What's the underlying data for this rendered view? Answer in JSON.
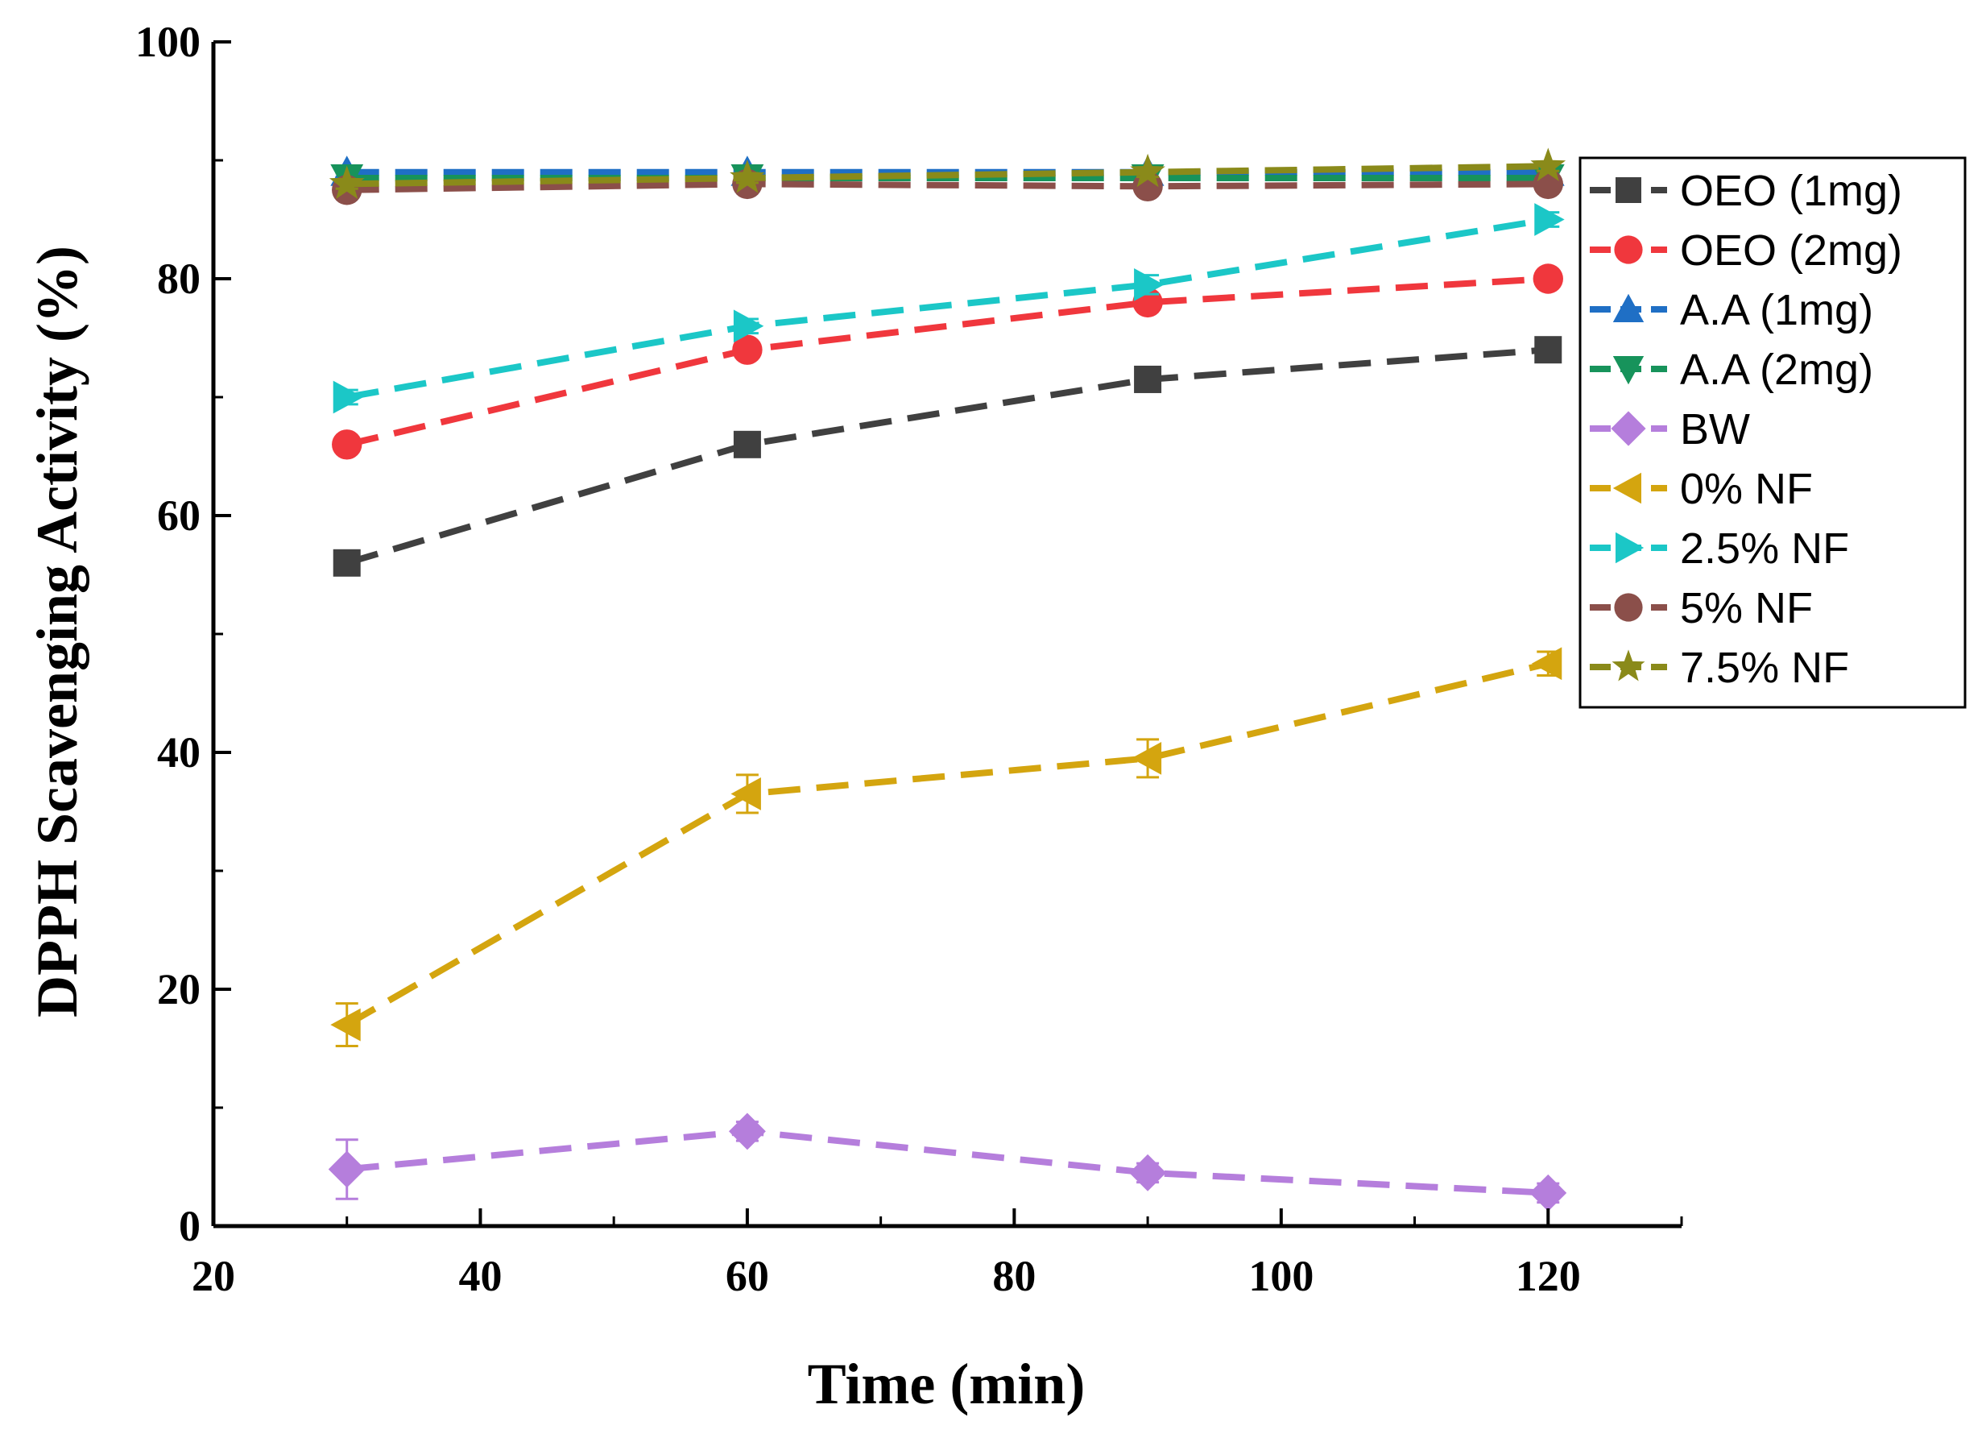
{
  "chart_data": {
    "type": "line",
    "xlabel": "Time (min)",
    "ylabel": "DPPH Scavenging Activity (%)",
    "xlim": [
      20,
      130
    ],
    "ylim": [
      0,
      100
    ],
    "xticks": [
      20,
      40,
      60,
      80,
      100,
      120
    ],
    "yticks": [
      0,
      20,
      40,
      60,
      80,
      100
    ],
    "grid": false,
    "legend_position": "top-right",
    "x": [
      30,
      60,
      90,
      120
    ],
    "series": [
      {
        "name": "OEO (1mg)",
        "values": [
          56,
          66,
          71.5,
          74
        ],
        "errors": [
          0.8,
          0.6,
          0.8,
          0.6
        ],
        "color": "#404040",
        "marker": "square"
      },
      {
        "name": "OEO (2mg)",
        "values": [
          66,
          74,
          78,
          80
        ],
        "errors": [
          0.6,
          0.6,
          0.6,
          0.6
        ],
        "color": "#f0373d",
        "marker": "circle"
      },
      {
        "name": "A.A (1mg)",
        "values": [
          89,
          89,
          89,
          89
        ],
        "errors": [
          0.4,
          0.4,
          0.4,
          0.4
        ],
        "color": "#1f6fc5",
        "marker": "triangle-up"
      },
      {
        "name": "A.A (2mg)",
        "values": [
          88.5,
          88.5,
          88.5,
          88.5
        ],
        "errors": [
          0.4,
          0.4,
          0.4,
          0.4
        ],
        "color": "#17935b",
        "marker": "triangle-down"
      },
      {
        "name": "BW",
        "values": [
          4.8,
          8,
          4.5,
          2.8
        ],
        "errors": [
          2.5,
          0.8,
          0.8,
          0.8
        ],
        "color": "#b57edc",
        "marker": "diamond"
      },
      {
        "name": "0% NF",
        "values": [
          17,
          36.5,
          39.5,
          47.5
        ],
        "errors": [
          1.8,
          1.6,
          1.6,
          1.0
        ],
        "color": "#d4a50f",
        "marker": "triangle-left"
      },
      {
        "name": "2.5% NF",
        "values": [
          70,
          76,
          79.5,
          85
        ],
        "errors": [
          0.6,
          0.6,
          0.8,
          0.6
        ],
        "color": "#1bc7c7",
        "marker": "triangle-right"
      },
      {
        "name": "5% NF",
        "values": [
          87.5,
          88,
          87.8,
          88
        ],
        "errors": [
          0.4,
          0.4,
          0.4,
          0.4
        ],
        "color": "#8b4f4a",
        "marker": "circle"
      },
      {
        "name": "7.5% NF",
        "values": [
          88,
          88.5,
          89,
          89.5
        ],
        "errors": [
          0.4,
          0.4,
          0.4,
          0.4
        ],
        "color": "#8a8a1a",
        "marker": "star"
      }
    ]
  }
}
